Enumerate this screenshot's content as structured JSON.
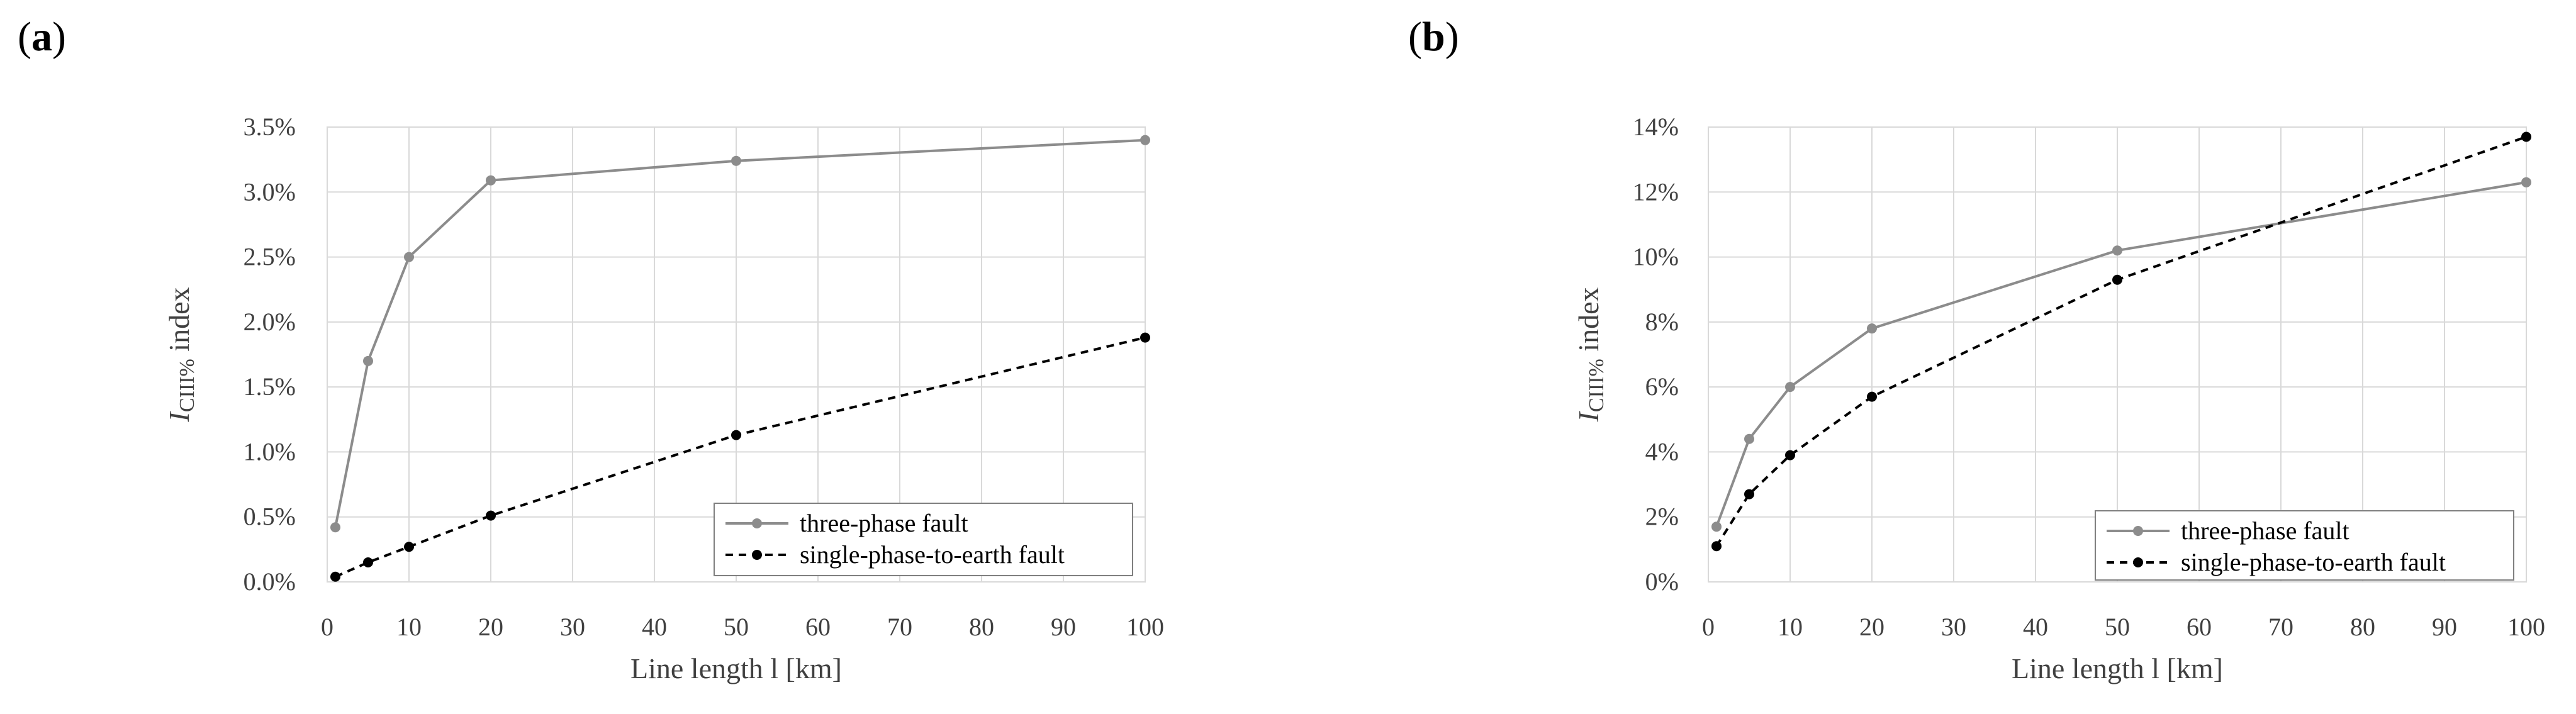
{
  "chart_data": [
    {
      "panel_label": "(a)",
      "type": "line",
      "xlabel": "Line length l [km]",
      "ylabel": "I_CIII% index",
      "xlim": [
        0,
        100
      ],
      "ylim": [
        0,
        3.5
      ],
      "xticks": [
        0,
        10,
        20,
        30,
        40,
        50,
        60,
        70,
        80,
        90,
        100
      ],
      "yticks": [
        0,
        0.5,
        1.0,
        1.5,
        2.0,
        2.5,
        3.0,
        3.5
      ],
      "ytick_labels": [
        "0.0%",
        "0.5%",
        "1.0%",
        "1.5%",
        "2.0%",
        "2.5%",
        "3.0%",
        "3.5%"
      ],
      "grid": true,
      "legend_position": "bottom-right",
      "series": [
        {
          "name": "three-phase fault",
          "style": "solid",
          "color": "#8c8c8c",
          "x": [
            1,
            5,
            10,
            20,
            50,
            100
          ],
          "y": [
            0.42,
            1.7,
            2.5,
            3.09,
            3.24,
            3.4
          ]
        },
        {
          "name": "single-phase-to-earth fault",
          "style": "dashed",
          "color": "#000000",
          "x": [
            1,
            5,
            10,
            20,
            50,
            100
          ],
          "y": [
            0.04,
            0.15,
            0.27,
            0.51,
            1.13,
            1.88
          ]
        }
      ]
    },
    {
      "panel_label": "(b)",
      "type": "line",
      "xlabel": "Line length l [km]",
      "ylabel": "I_CIII% index",
      "xlim": [
        0,
        100
      ],
      "ylim": [
        0,
        14
      ],
      "xticks": [
        0,
        10,
        20,
        30,
        40,
        50,
        60,
        70,
        80,
        90,
        100
      ],
      "yticks": [
        0,
        2,
        4,
        6,
        8,
        10,
        12,
        14
      ],
      "ytick_labels": [
        "0%",
        "2%",
        "4%",
        "6%",
        "8%",
        "10%",
        "12%",
        "14%"
      ],
      "grid": true,
      "legend_position": "bottom-right",
      "series": [
        {
          "name": "three-phase fault",
          "style": "solid",
          "color": "#8c8c8c",
          "x": [
            1,
            5,
            10,
            20,
            50,
            100
          ],
          "y": [
            1.7,
            4.4,
            6.0,
            7.8,
            10.2,
            12.3
          ]
        },
        {
          "name": "single-phase-to-earth fault",
          "style": "dashed",
          "color": "#000000",
          "x": [
            1,
            5,
            10,
            20,
            50,
            100
          ],
          "y": [
            1.1,
            2.7,
            3.9,
            5.7,
            9.3,
            13.7
          ]
        }
      ]
    }
  ]
}
